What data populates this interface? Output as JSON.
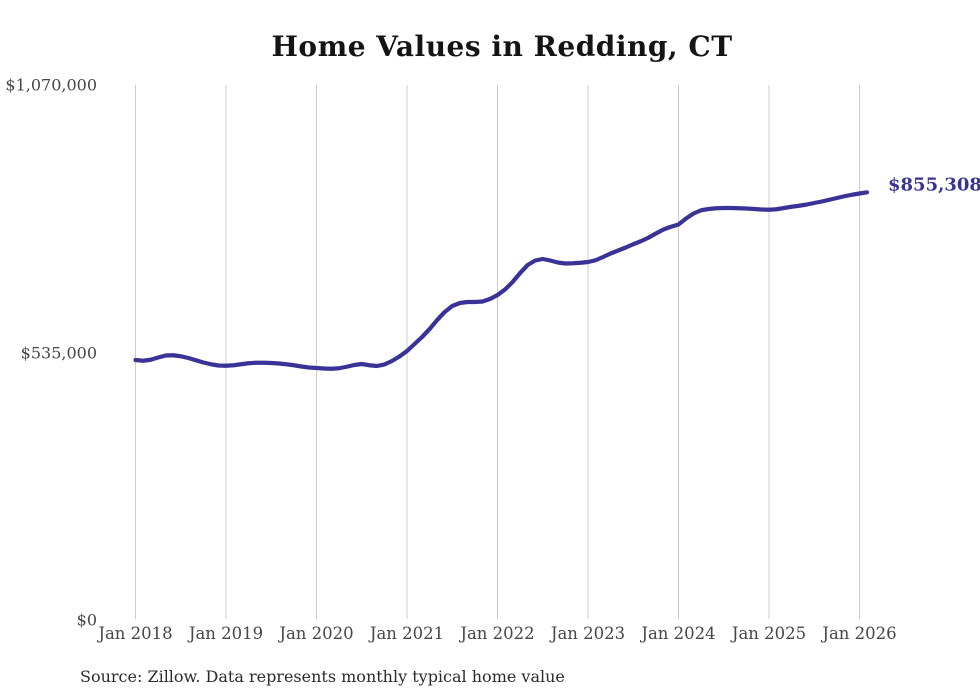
{
  "title": "Home Values in Redding, CT",
  "source_note": "Source: Zillow. Data represents monthly typical home value",
  "colors": {
    "background": "#ffffff",
    "line": "#3a3397",
    "gridline": "#cccccc",
    "title_text": "#141414",
    "axis_text": "#474747",
    "source_text": "#2b2b2b"
  },
  "chart_data": {
    "type": "line",
    "title": "Home Values in Redding, CT",
    "xlabel": "",
    "ylabel": "",
    "grid": "vertical-only",
    "legend": "none",
    "ylim": [
      0,
      1070000
    ],
    "y_tick_labels": [
      "$1,070,000",
      "$535,000",
      "$0"
    ],
    "y_tick_values": [
      1070000,
      535000,
      0
    ],
    "x_tick_labels": [
      "Jan 2018",
      "Jan 2019",
      "Jan 2020",
      "Jan 2021",
      "Jan 2022",
      "Jan 2023",
      "Jan 2024",
      "Jan 2025",
      "Jan 2026"
    ],
    "last_value": 855308,
    "last_value_label": "$855,308",
    "series": [
      {
        "name": "Typical home value (monthly)",
        "start_month": "Jan 2018",
        "end_month": "Feb 2026",
        "frequency": "monthly",
        "values": [
          520000,
          518500,
          520500,
          525000,
          529000,
          529500,
          527500,
          524000,
          519500,
          515000,
          511500,
          509000,
          508500,
          509500,
          511500,
          513500,
          514500,
          514500,
          514000,
          513000,
          511500,
          509500,
          507000,
          505000,
          504000,
          503000,
          502500,
          503500,
          506500,
          510000,
          512000,
          509500,
          508000,
          511000,
          518000,
          527000,
          538000,
          552000,
          566000,
          582000,
          600000,
          616000,
          628000,
          634000,
          636000,
          636000,
          637000,
          642000,
          650000,
          661000,
          676000,
          694000,
          710000,
          719000,
          722000,
          719000,
          715000,
          713000,
          713500,
          714500,
          716000,
          719500,
          726000,
          733000,
          739000,
          745000,
          751500,
          757500,
          764500,
          773000,
          781000,
          786500,
          791000,
          803000,
          813000,
          819500,
          822000,
          823500,
          824000,
          824000,
          823500,
          823000,
          822000,
          821000,
          820500,
          821500,
          824000,
          826500,
          828500,
          831000,
          834000,
          837000,
          840500,
          844000,
          847500,
          850500,
          853000,
          855308
        ]
      }
    ]
  }
}
